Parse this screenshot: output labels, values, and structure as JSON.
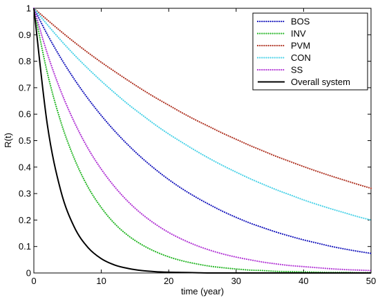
{
  "chart_data": {
    "type": "line",
    "xlabel": "time (year)",
    "ylabel": "R(t)",
    "xlim": [
      0,
      50
    ],
    "ylim": [
      0,
      1
    ],
    "xticks": [
      0,
      10,
      20,
      30,
      40,
      50
    ],
    "yticks": [
      0,
      0.1,
      0.2,
      0.3,
      0.4,
      0.5,
      0.6,
      0.7,
      0.8,
      0.9,
      1
    ],
    "ytick_labels": [
      "0",
      "0.1",
      "0.2",
      "0.3",
      "0.4",
      "0.5",
      "0.6",
      "0.7",
      "0.8",
      "0.9",
      "1"
    ],
    "grid": false,
    "legend_position": "top-right",
    "x": [
      0,
      2,
      4,
      6,
      8,
      10,
      12,
      14,
      16,
      18,
      20,
      22,
      24,
      26,
      28,
      30,
      32,
      34,
      36,
      38,
      40,
      42,
      44,
      46,
      48,
      50
    ],
    "series": [
      {
        "name": "BOS",
        "color": "#1f1fbf",
        "style": "dotted",
        "values": [
          1.0,
          0.901,
          0.812,
          0.732,
          0.66,
          0.595,
          0.536,
          0.483,
          0.435,
          0.392,
          0.353,
          0.318,
          0.287,
          0.259,
          0.233,
          0.21,
          0.189,
          0.171,
          0.154,
          0.139,
          0.125,
          0.113,
          0.101,
          0.091,
          0.082,
          0.074
        ]
      },
      {
        "name": "INV",
        "color": "#2db82d",
        "style": "dotted",
        "values": [
          1.0,
          0.756,
          0.571,
          0.432,
          0.326,
          0.247,
          0.186,
          0.141,
          0.107,
          0.081,
          0.061,
          0.046,
          0.035,
          0.026,
          0.02,
          0.015,
          0.011,
          0.009,
          0.006,
          0.005,
          0.004,
          0.003,
          0.002,
          0.002,
          0.001,
          0.001
        ]
      },
      {
        "name": "PVM",
        "color": "#b23a2a",
        "style": "dotted",
        "values": [
          1.0,
          0.956,
          0.913,
          0.872,
          0.833,
          0.796,
          0.761,
          0.727,
          0.694,
          0.663,
          0.634,
          0.605,
          0.578,
          0.553,
          0.528,
          0.505,
          0.482,
          0.461,
          0.44,
          0.421,
          0.402,
          0.384,
          0.367,
          0.351,
          0.335,
          0.32
        ]
      },
      {
        "name": "CON",
        "color": "#4fd3e8",
        "style": "dotted",
        "values": [
          1.0,
          0.938,
          0.879,
          0.824,
          0.773,
          0.725,
          0.68,
          0.637,
          0.598,
          0.56,
          0.525,
          0.493,
          0.462,
          0.433,
          0.406,
          0.381,
          0.357,
          0.335,
          0.314,
          0.295,
          0.276,
          0.259,
          0.243,
          0.228,
          0.213,
          0.2
        ]
      },
      {
        "name": "SS",
        "color": "#b43bd6",
        "style": "dotted",
        "values": [
          1.0,
          0.829,
          0.687,
          0.57,
          0.472,
          0.392,
          0.325,
          0.269,
          0.223,
          0.185,
          0.153,
          0.127,
          0.105,
          0.087,
          0.072,
          0.06,
          0.05,
          0.041,
          0.034,
          0.028,
          0.024,
          0.02,
          0.016,
          0.013,
          0.011,
          0.009
        ]
      },
      {
        "name": "Overall system",
        "color": "#000000",
        "style": "solid",
        "values": [
          1.0,
          0.56,
          0.31,
          0.173,
          0.097,
          0.054,
          0.03,
          0.017,
          0.009,
          0.005,
          0.003,
          0.002,
          0.001,
          0.0,
          0.0,
          0.0,
          0.0,
          0.0,
          0.0,
          0.0,
          0.0,
          0.0,
          0.0,
          0.0,
          0.0,
          0.0
        ]
      }
    ]
  }
}
